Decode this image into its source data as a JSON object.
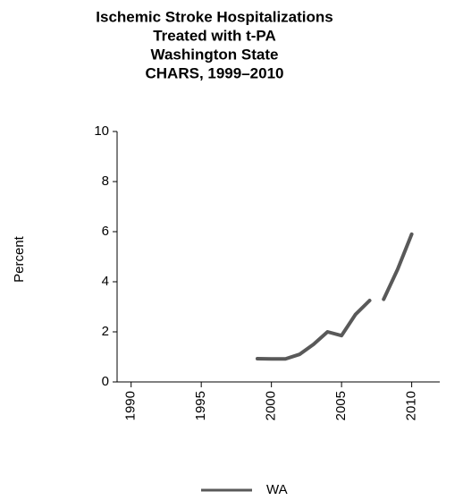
{
  "chart_data": {
    "type": "line",
    "title": [
      "Ischemic Stroke Hospitalizations",
      "Treated with t-PA",
      "Washington State",
      "CHARS, 1999–2010"
    ],
    "ylabel": "Percent",
    "x": [
      1999,
      2000,
      2001,
      2002,
      2003,
      2004,
      2005,
      2006,
      2007,
      null,
      2008,
      2009,
      2010
    ],
    "series": [
      {
        "name": "WA",
        "color": "#595959",
        "values": [
          0.93,
          0.92,
          0.92,
          1.1,
          1.5,
          2.0,
          1.85,
          2.7,
          3.25,
          null,
          3.3,
          4.5,
          5.9
        ]
      }
    ],
    "xlim": [
      1989,
      2012
    ],
    "xticks": [
      1990,
      1995,
      2000,
      2005,
      2010
    ],
    "ylim": [
      0,
      10
    ],
    "yticks": [
      0,
      2,
      4,
      6,
      8,
      10
    ],
    "legend": "bottom"
  }
}
